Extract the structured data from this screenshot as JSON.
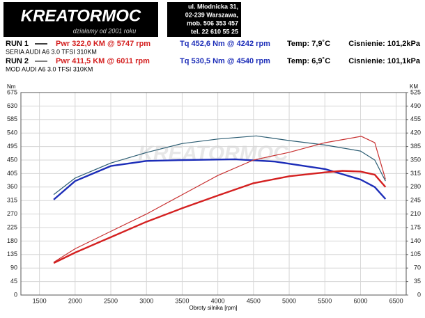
{
  "header": {
    "logo": "KREATORMOC",
    "slogan": "działamy od 2001 roku",
    "address": [
      "ul. Młodnicka 31,",
      "02-239  Warszawa,",
      "mob.  506 353 457",
      "tel.  22 610 55 25"
    ]
  },
  "runs": [
    {
      "label": "RUN 1",
      "power": "Pwr  322,0 KM @ 5747 rpm",
      "torque": "Tq 452,6 Nm @ 4242 rpm",
      "temp": "Temp: 7,9˚C",
      "pressure": "Cisnienie: 101,2kPa",
      "car": "SERIA AUDI A6 3.0 TFSI 310KM"
    },
    {
      "label": "RUN 2",
      "power": "Pwr  411,5 KM @ 6011 rpm",
      "torque": "Tq 530,5 Nm @ 4540 rpm",
      "temp": "Temp: 6,9˚C",
      "pressure": "Cisnienie: 101,1kPa",
      "car": "MOD AUDI A6 3.0 TFSI 310KM"
    }
  ],
  "chart_data": {
    "type": "line",
    "watermark": "KREATORMOC",
    "x_label": "Obroty silnika [rpm]",
    "y_label": "Nm",
    "y2_label": "KM",
    "xlim": [
      1240,
      6640
    ],
    "xticks": [
      1500,
      2000,
      2500,
      3000,
      3500,
      4000,
      4500,
      5000,
      5500,
      6000,
      6500
    ],
    "ylim": [
      0,
      675
    ],
    "yticks": [
      0,
      45,
      90,
      135,
      180,
      225,
      270,
      315,
      360,
      405,
      450,
      495,
      540,
      585,
      630,
      675
    ],
    "y2lim": [
      0,
      525
    ],
    "y2ticks": [
      0,
      35,
      70,
      105,
      140,
      175,
      210,
      245,
      280,
      315,
      350,
      385,
      420,
      455,
      490,
      525
    ],
    "grid": true,
    "series": [
      {
        "color": "#1c2db8",
        "width": 2.4,
        "x": [
          1700,
          2000,
          2500,
          3000,
          3500,
          4242,
          4800,
          5500,
          6000,
          6200,
          6350
        ],
        "values": [
          318,
          380,
          430,
          447,
          450,
          452.6,
          445,
          420,
          385,
          360,
          320
        ]
      },
      {
        "color": "#2b5c72",
        "width": 1.2,
        "x": [
          1700,
          2000,
          2500,
          3000,
          3500,
          4000,
          4540,
          5000,
          5500,
          6000,
          6200,
          6350
        ],
        "values": [
          335,
          390,
          440,
          475,
          505,
          520,
          530.5,
          515,
          500,
          480,
          450,
          380
        ]
      },
      {
        "color": "#d42020",
        "width": 2.4,
        "axis": "y2",
        "x": [
          1700,
          2000,
          2500,
          3000,
          3500,
          4000,
          4500,
          5000,
          5500,
          5747,
          6000,
          6200,
          6350
        ],
        "values": [
          83,
          110,
          150,
          190,
          225,
          258,
          290,
          308,
          318,
          322,
          320,
          312,
          280
        ]
      },
      {
        "color": "#c83030",
        "width": 1.2,
        "axis": "y2",
        "x": [
          1700,
          2000,
          2500,
          3000,
          3500,
          4000,
          4500,
          5000,
          5500,
          6011,
          6200,
          6350
        ],
        "values": [
          85,
          120,
          165,
          210,
          260,
          310,
          350,
          370,
          395,
          411.5,
          395,
          300
        ]
      }
    ]
  }
}
